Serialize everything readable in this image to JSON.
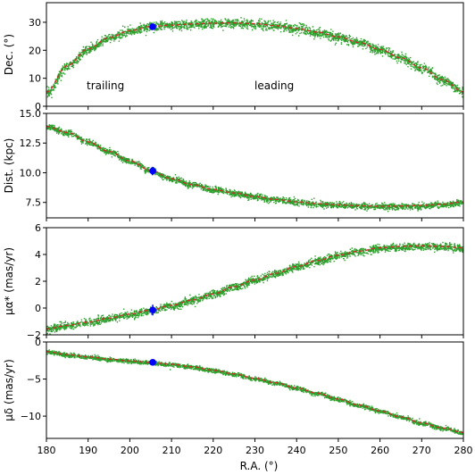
{
  "chart_data": [
    {
      "type": "scatter",
      "ylabel": "Dec. (°)",
      "ylim": [
        0,
        37
      ],
      "yticks": [
        0,
        10,
        20,
        30
      ],
      "annotations": [
        "trailing",
        "leading"
      ],
      "stream_points": {
        "color": "#2ca02c",
        "x": [
          180,
          185,
          190,
          195,
          200,
          205,
          210,
          215,
          220,
          225,
          230,
          235,
          240,
          245,
          250,
          255,
          260,
          265,
          270,
          275,
          280
        ],
        "y": [
          5,
          14.5,
          20.5,
          24.5,
          27,
          28.5,
          29,
          29.4,
          29.7,
          29.8,
          29.5,
          28.8,
          27.8,
          26.5,
          24.8,
          22.8,
          20.3,
          17.3,
          13.7,
          9.5,
          5.2
        ],
        "spread": 1.8
      },
      "model_track": {
        "color": "#d62728",
        "style": "dashed"
      },
      "progenitor": {
        "color": "#0000ff",
        "x": 205.5,
        "y": 28.4,
        "yerr": 0.6
      }
    },
    {
      "type": "scatter",
      "ylabel": "Dist. (kpc)",
      "ylim": [
        6.2,
        15
      ],
      "yticks": [
        7.5,
        10.0,
        12.5,
        15.0
      ],
      "tick_labels": [
        "7.5",
        "10.0",
        "12.5",
        "15.0"
      ],
      "stream_points": {
        "color": "#2ca02c",
        "x": [
          180,
          185,
          190,
          195,
          200,
          205,
          210,
          215,
          220,
          225,
          230,
          235,
          240,
          245,
          250,
          255,
          260,
          265,
          270,
          275,
          280
        ],
        "y": [
          13.9,
          13.4,
          12.6,
          11.8,
          11.0,
          10.2,
          9.5,
          9.0,
          8.6,
          8.3,
          8.0,
          7.75,
          7.55,
          7.4,
          7.3,
          7.22,
          7.18,
          7.2,
          7.25,
          7.35,
          7.55
        ],
        "spread": 0.28
      },
      "model_track": {
        "color": "#d62728",
        "style": "dashed"
      },
      "progenitor": {
        "color": "#0000ff",
        "x": 205.5,
        "y": 10.15,
        "yerr": 0.35
      }
    },
    {
      "type": "scatter",
      "ylabel": "μα* (mas/yr)",
      "ylim": [
        -2,
        6
      ],
      "yticks": [
        -2,
        0,
        2,
        4,
        6
      ],
      "stream_points": {
        "color": "#2ca02c",
        "x": [
          180,
          185,
          190,
          195,
          200,
          205,
          210,
          215,
          220,
          225,
          230,
          235,
          240,
          245,
          250,
          255,
          260,
          265,
          270,
          275,
          280
        ],
        "y": [
          -1.55,
          -1.3,
          -1.05,
          -0.75,
          -0.45,
          -0.15,
          0.2,
          0.6,
          1.05,
          1.6,
          2.1,
          2.6,
          3.1,
          3.55,
          3.95,
          4.25,
          4.5,
          4.6,
          4.65,
          4.6,
          4.5
        ],
        "spread": 0.3
      },
      "model_track": {
        "color": "#d62728",
        "style": "dashed"
      },
      "progenitor": {
        "color": "#0000ff",
        "x": 205.5,
        "y": -0.15,
        "yerr": 0.4
      }
    },
    {
      "type": "scatter",
      "xlabel": "R.A. (°)",
      "ylabel": "μδ (mas/yr)",
      "xlim": [
        180,
        280
      ],
      "xticks": [
        180,
        190,
        200,
        210,
        220,
        230,
        240,
        250,
        260,
        270,
        280
      ],
      "ylim": [
        -13,
        0
      ],
      "yticks": [
        -10,
        -5,
        0
      ],
      "stream_points": {
        "color": "#2ca02c",
        "x": [
          180,
          185,
          190,
          195,
          200,
          205,
          210,
          215,
          220,
          225,
          230,
          235,
          240,
          245,
          250,
          255,
          260,
          265,
          270,
          275,
          280
        ],
        "y": [
          -1.3,
          -1.7,
          -2.0,
          -2.3,
          -2.55,
          -2.75,
          -3.0,
          -3.35,
          -3.8,
          -4.3,
          -4.9,
          -5.5,
          -6.2,
          -6.9,
          -7.7,
          -8.5,
          -9.3,
          -10.1,
          -10.9,
          -11.6,
          -12.2
        ],
        "spread": 0.3
      },
      "model_track": {
        "color": "#d62728",
        "style": "dashed"
      },
      "progenitor": {
        "color": "#0000ff",
        "x": 205.5,
        "y": -2.75,
        "yerr": 0.25
      }
    }
  ]
}
